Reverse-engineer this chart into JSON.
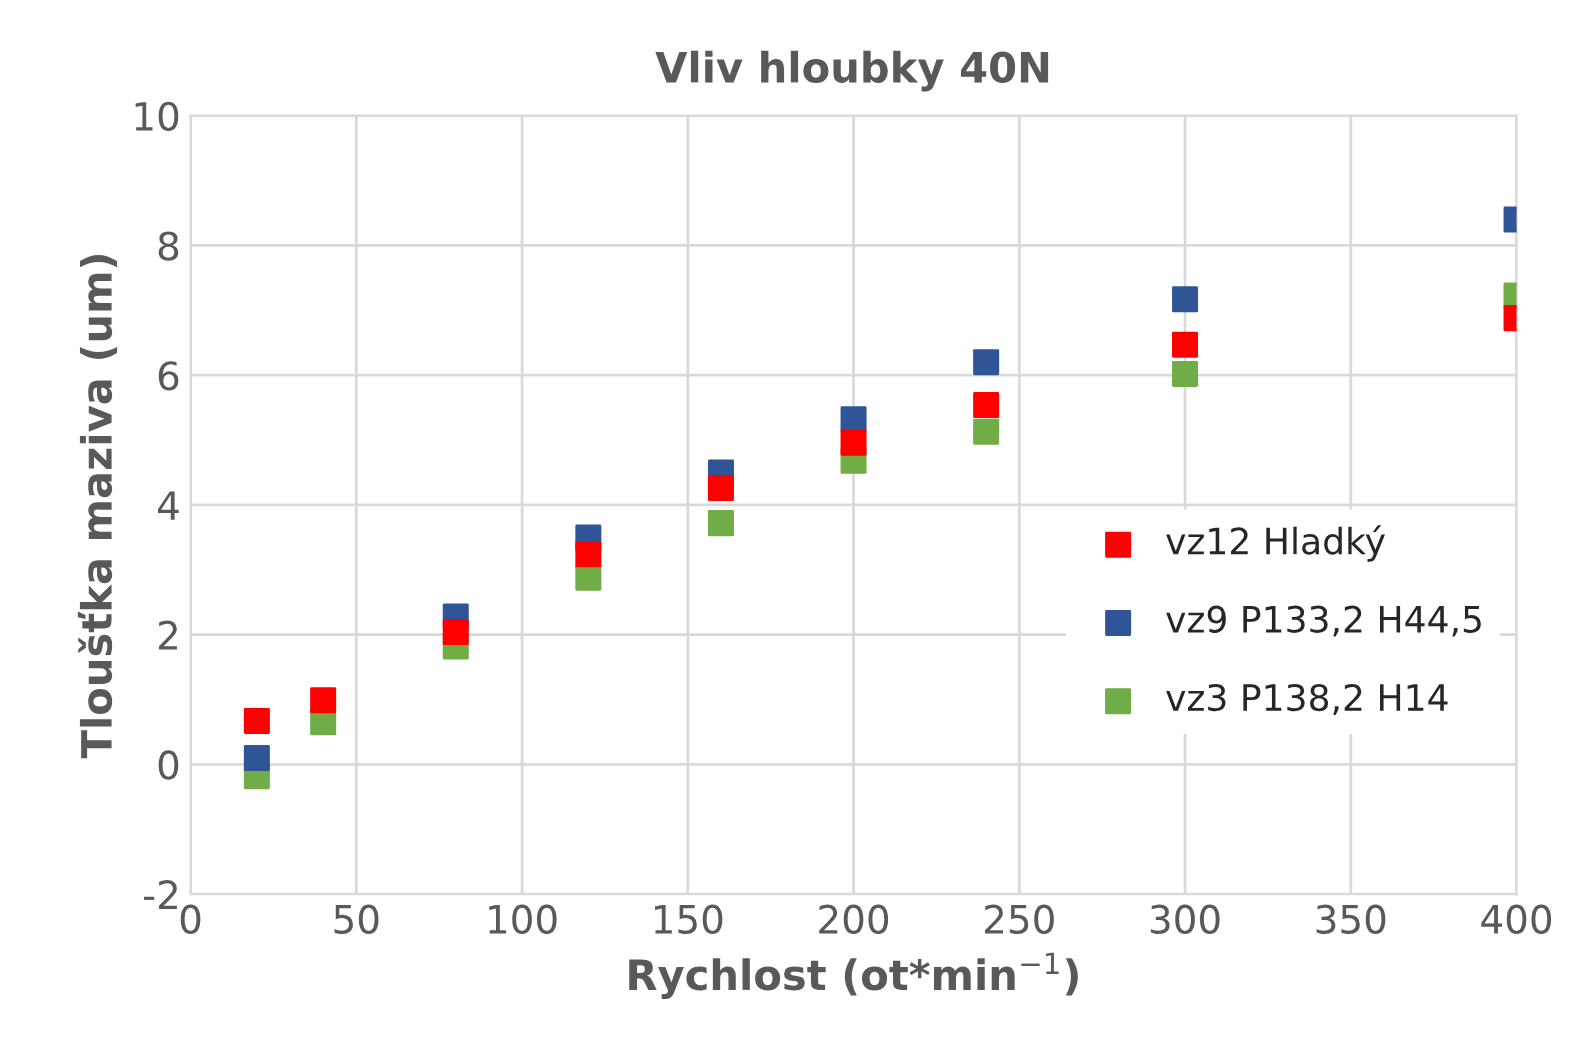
{
  "chart_data": {
    "type": "scatter",
    "title": "Vliv hloubky 40N",
    "xlabel": "Rychlost (ot*min$^{−1}$)",
    "ylabel": "Tloušťka maziva (um)",
    "x": [
      20,
      40,
      80,
      120,
      160,
      200,
      240,
      300,
      400
    ],
    "series": [
      {
        "name": "vz12 Hladký",
        "color": "#ff0000",
        "marker": "square",
        "values": [
          0.67,
          0.99,
          2.04,
          3.24,
          4.26,
          4.96,
          5.54,
          6.47,
          6.88
        ]
      },
      {
        "name": "vz9 P133,2 H44,5",
        "color": "#2f5597",
        "marker": "square",
        "values": [
          0.1,
          null,
          2.28,
          3.5,
          4.5,
          5.32,
          6.2,
          7.17,
          8.4
        ]
      },
      {
        "name": "vz3 P138,2 H14",
        "color": "#70ad47",
        "marker": "square",
        "values": [
          -0.18,
          0.65,
          1.82,
          2.88,
          3.72,
          4.68,
          5.13,
          6.02,
          7.23
        ]
      }
    ],
    "xlim": [
      0,
      400
    ],
    "xticks": [
      0,
      50,
      100,
      150,
      200,
      250,
      300,
      350,
      400
    ],
    "ylim": [
      -2,
      10
    ],
    "yticks": [
      -2,
      0,
      2,
      4,
      6,
      8,
      10
    ],
    "grid": true,
    "legend": "right"
  }
}
